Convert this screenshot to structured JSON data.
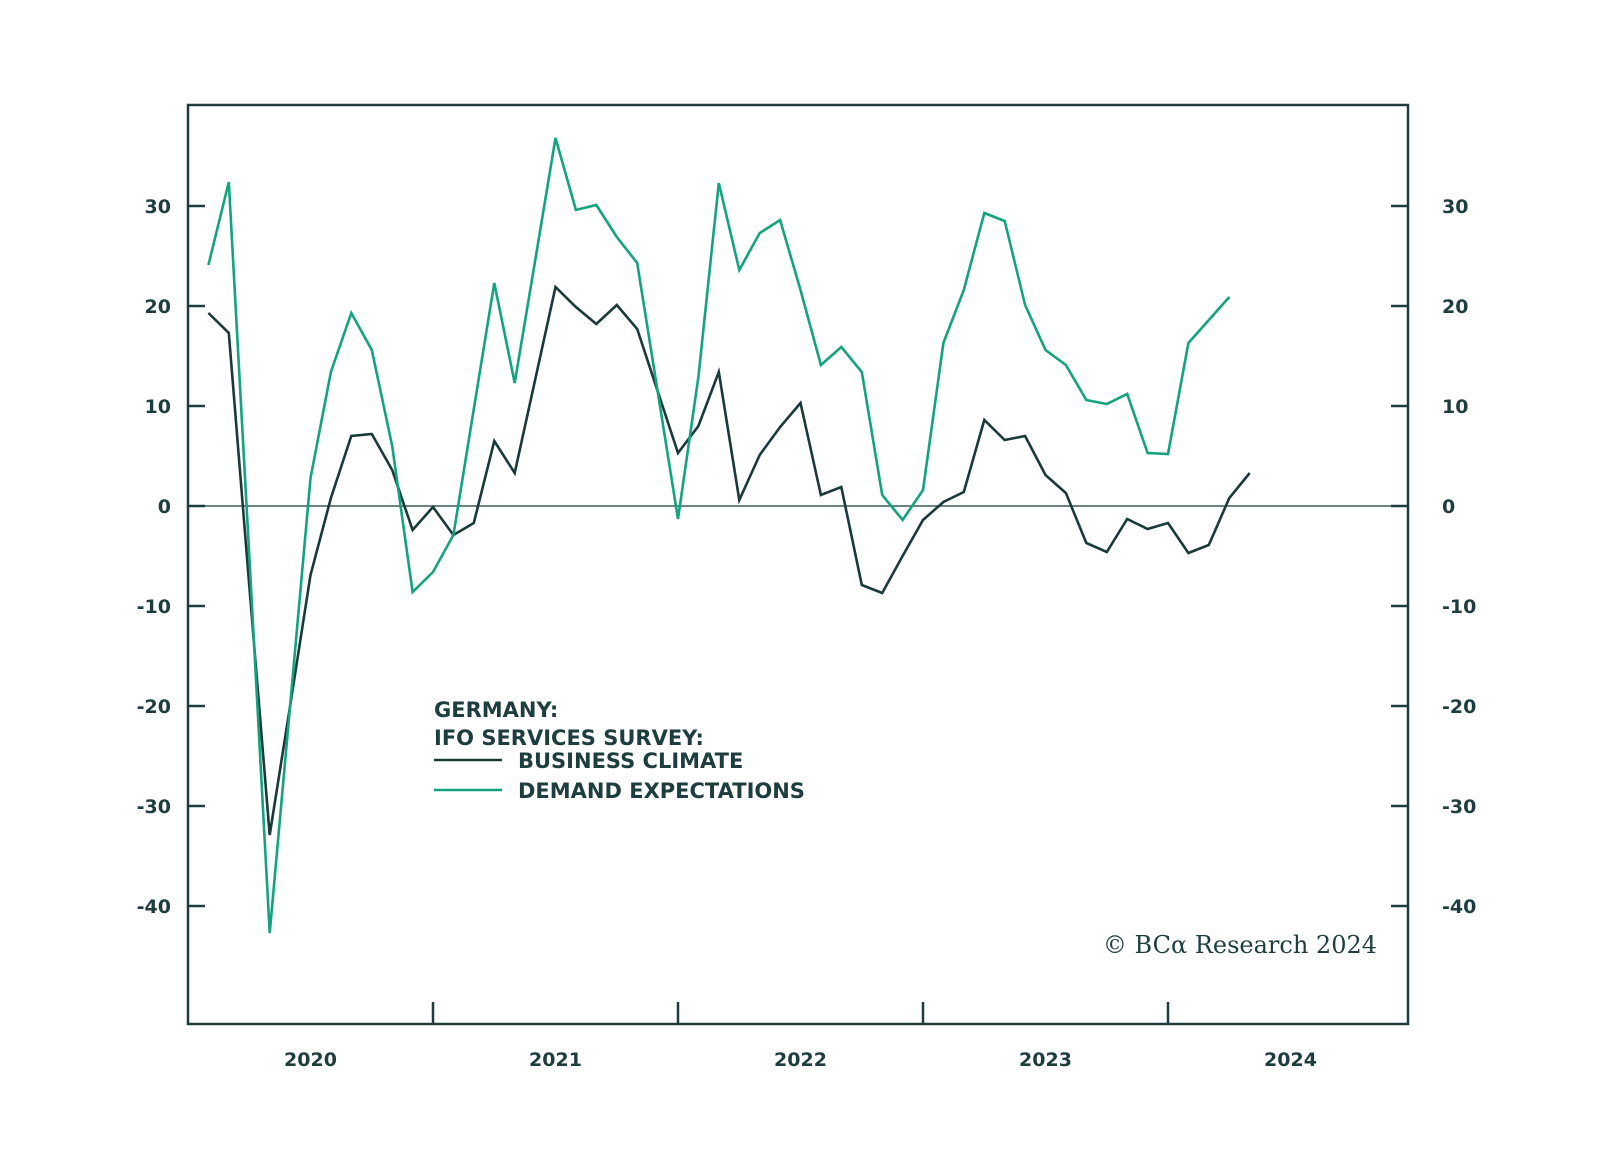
{
  "chart_data": {
    "type": "line",
    "title": "GERMANY: IFO SERVICES SURVEY:",
    "title_lines": [
      "GERMANY:",
      "IFO SERVICES SURVEY:"
    ],
    "frequency": "monthly",
    "x_start": "2020-01",
    "xlabel": "",
    "ylabel": "",
    "ylim": [
      -51.8,
      40.1
    ],
    "y_ticks": [
      -40,
      -30,
      -20,
      -10,
      0,
      10,
      20,
      30
    ],
    "y_tick_labels": [
      "-40",
      "-30",
      "-20",
      "-10",
      "0",
      "10",
      "20",
      "30"
    ],
    "y_axes": [
      "left",
      "right"
    ],
    "x_tick_labels": [
      "2020",
      "2021",
      "2022",
      "2023",
      "2024"
    ],
    "zero_line": true,
    "grid": false,
    "legend_position": "center-left",
    "colors": {
      "axis": "#1d3d3f",
      "business_climate": "#1a3a3a",
      "demand_expectations": "#14a37f"
    },
    "series": [
      {
        "name": "BUSINESS CLIMATE",
        "key": "business_climate",
        "values": [
          19.3,
          17.3,
          -8.0,
          -32.9,
          -20.0,
          -6.9,
          0.8,
          7.0,
          7.2,
          3.6,
          -2.4,
          -0.1,
          -2.9,
          -1.7,
          6.5,
          3.3,
          12.6,
          21.9,
          19.9,
          18.2,
          20.1,
          17.7,
          11.5,
          5.3,
          8.0,
          13.4,
          0.6,
          5.1,
          7.9,
          10.3,
          1.1,
          1.9,
          -7.9,
          -8.7,
          -5.0,
          -1.4,
          0.4,
          1.4,
          8.6,
          6.6,
          7.0,
          3.1,
          1.3,
          -3.7,
          -4.6,
          -1.3,
          -2.3,
          -1.7,
          -4.7,
          -3.9,
          0.8,
          3.3
        ]
      },
      {
        "name": "DEMAND EXPECTATIONS",
        "key": "demand_expectations",
        "values": [
          24.1,
          32.4,
          -5.0,
          -42.7,
          -20.0,
          2.8,
          13.4,
          19.3,
          15.6,
          6.0,
          -8.6,
          -6.6,
          -2.9,
          9.7,
          22.3,
          12.3,
          24.5,
          36.8,
          29.6,
          30.1,
          26.9,
          24.3,
          11.5,
          -1.3,
          12.9,
          32.3,
          23.6,
          27.3,
          28.6,
          21.6,
          14.1,
          15.9,
          13.4,
          1.1,
          -1.4,
          1.6,
          16.3,
          21.6,
          29.3,
          28.5,
          20.1,
          15.6,
          14.1,
          10.6,
          10.2,
          11.2,
          5.3,
          5.2,
          16.3,
          18.6,
          20.9
        ]
      }
    ],
    "annotations": [
      {
        "type": "copyright",
        "text": "© BCα Research 2024",
        "position": "bottom-right"
      }
    ]
  }
}
